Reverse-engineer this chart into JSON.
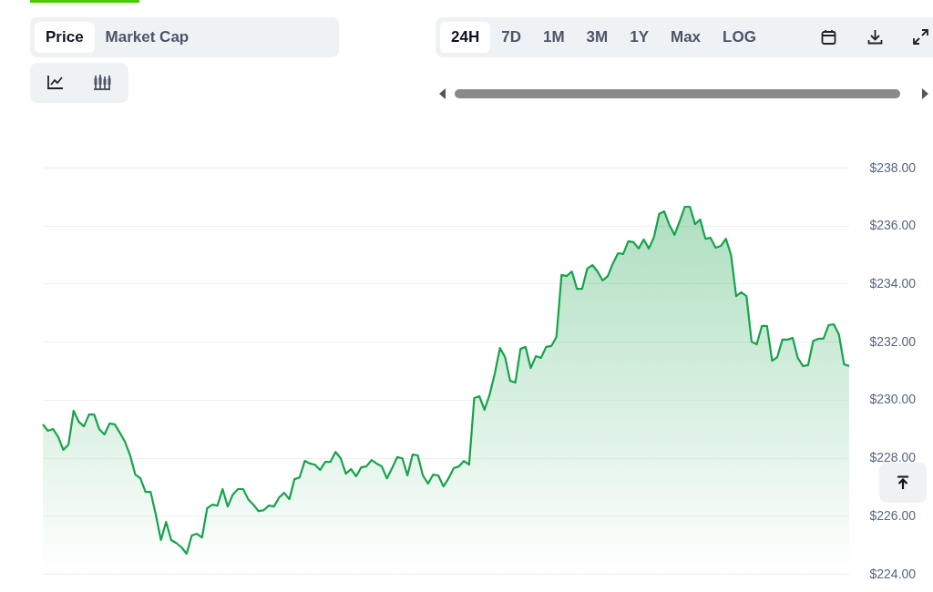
{
  "chart_data": {
    "type": "area",
    "annotations": [
      "Price",
      "Market Cap",
      "24H",
      "7D",
      "1M",
      "3M",
      "1Y",
      "Max",
      "LOG"
    ],
    "categories": [
      null,
      null,
      null,
      null,
      null,
      null,
      null,
      null,
      null,
      null,
      null,
      null,
      null,
      null,
      null,
      null,
      null,
      null,
      null,
      null,
      null,
      null,
      null,
      null,
      null,
      null,
      null,
      null,
      null,
      null,
      null,
      null,
      null,
      null,
      null,
      null,
      null,
      null,
      null,
      null,
      null,
      null,
      null,
      null,
      null,
      null,
      null,
      null,
      null,
      null,
      null,
      null,
      null,
      null,
      null,
      null,
      null,
      null,
      null,
      null,
      null,
      null,
      null,
      null,
      null,
      null,
      null,
      null,
      null,
      null,
      null,
      null,
      null,
      null,
      null,
      null,
      null,
      null,
      null,
      null,
      null,
      null,
      null,
      null,
      null,
      null,
      null,
      null,
      null,
      null,
      null,
      null,
      null,
      null,
      null,
      null,
      null,
      null,
      null,
      null,
      null,
      null,
      null,
      null,
      null,
      null,
      null,
      null,
      null,
      null,
      null,
      null,
      null,
      null,
      null,
      null,
      null,
      null,
      null,
      null,
      null,
      null,
      null,
      null,
      null,
      null,
      null,
      null,
      null,
      null,
      null,
      null,
      null,
      null,
      null,
      null,
      null,
      null,
      null,
      null,
      null,
      null,
      null,
      null,
      null,
      null,
      null,
      null,
      null,
      null,
      null,
      null,
      null,
      null,
      null,
      null,
      null,
      null
    ],
    "series": [
      {
        "color": "#16a34a",
        "values": [
          229.15,
          228.93,
          228.99,
          228.71,
          228.27,
          228.46,
          229.62,
          229.24,
          229.08,
          229.49,
          229.49,
          228.98,
          228.8,
          229.18,
          229.15,
          228.86,
          228.55,
          228.08,
          227.42,
          227.29,
          226.82,
          226.82,
          226.04,
          225.16,
          225.79,
          225.16,
          225.06,
          224.91,
          224.69,
          225.32,
          225.38,
          225.25,
          226.26,
          226.38,
          226.35,
          226.92,
          226.32,
          226.73,
          226.92,
          226.92,
          226.57,
          226.38,
          226.16,
          226.19,
          226.35,
          226.32,
          226.63,
          226.79,
          226.57,
          227.26,
          227.32,
          227.89,
          227.8,
          227.76,
          227.58,
          227.86,
          227.86,
          228.2,
          227.98,
          227.45,
          227.61,
          227.36,
          227.67,
          227.7,
          227.92,
          227.8,
          227.7,
          227.29,
          227.64,
          228.02,
          227.98,
          227.39,
          228.11,
          228.08,
          227.39,
          227.11,
          227.42,
          227.39,
          227.01,
          227.29,
          227.64,
          227.7,
          227.89,
          227.76,
          230.06,
          230.12,
          229.65,
          230.18,
          230.9,
          231.78,
          231.47,
          230.65,
          230.59,
          231.75,
          231.82,
          231.09,
          231.5,
          231.44,
          231.82,
          231.85,
          232.16,
          234.3,
          234.26,
          234.42,
          233.82,
          233.82,
          234.52,
          234.64,
          234.42,
          234.11,
          234.26,
          234.7,
          235.05,
          235.02,
          235.46,
          235.43,
          235.21,
          235.52,
          235.21,
          235.61,
          236.4,
          236.49,
          236.02,
          235.68,
          236.15,
          236.65,
          236.65,
          236.05,
          236.21,
          235.55,
          235.58,
          235.24,
          235.3,
          235.55,
          234.99,
          233.57,
          233.7,
          233.57,
          232.0,
          231.91,
          232.54,
          232.54,
          231.34,
          231.47,
          232.07,
          232.07,
          232.13,
          231.44,
          231.16,
          231.19,
          232.03,
          232.1,
          232.1,
          232.57,
          232.6,
          232.25,
          231.22,
          231.16
        ]
      }
    ],
    "ylim": [
      224,
      238
    ],
    "yticks": [
      {
        "value": 224,
        "label": "$224.00"
      },
      {
        "value": 226,
        "label": "$226.00"
      },
      {
        "value": 228,
        "label": "$228.00"
      },
      {
        "value": 230,
        "label": "$230.00"
      },
      {
        "value": 232,
        "label": "$232.00"
      },
      {
        "value": 234,
        "label": "$234.00"
      },
      {
        "value": 236,
        "label": "$236.00"
      },
      {
        "value": 238,
        "label": "$238.00"
      }
    ],
    "grid": "y"
  }
}
